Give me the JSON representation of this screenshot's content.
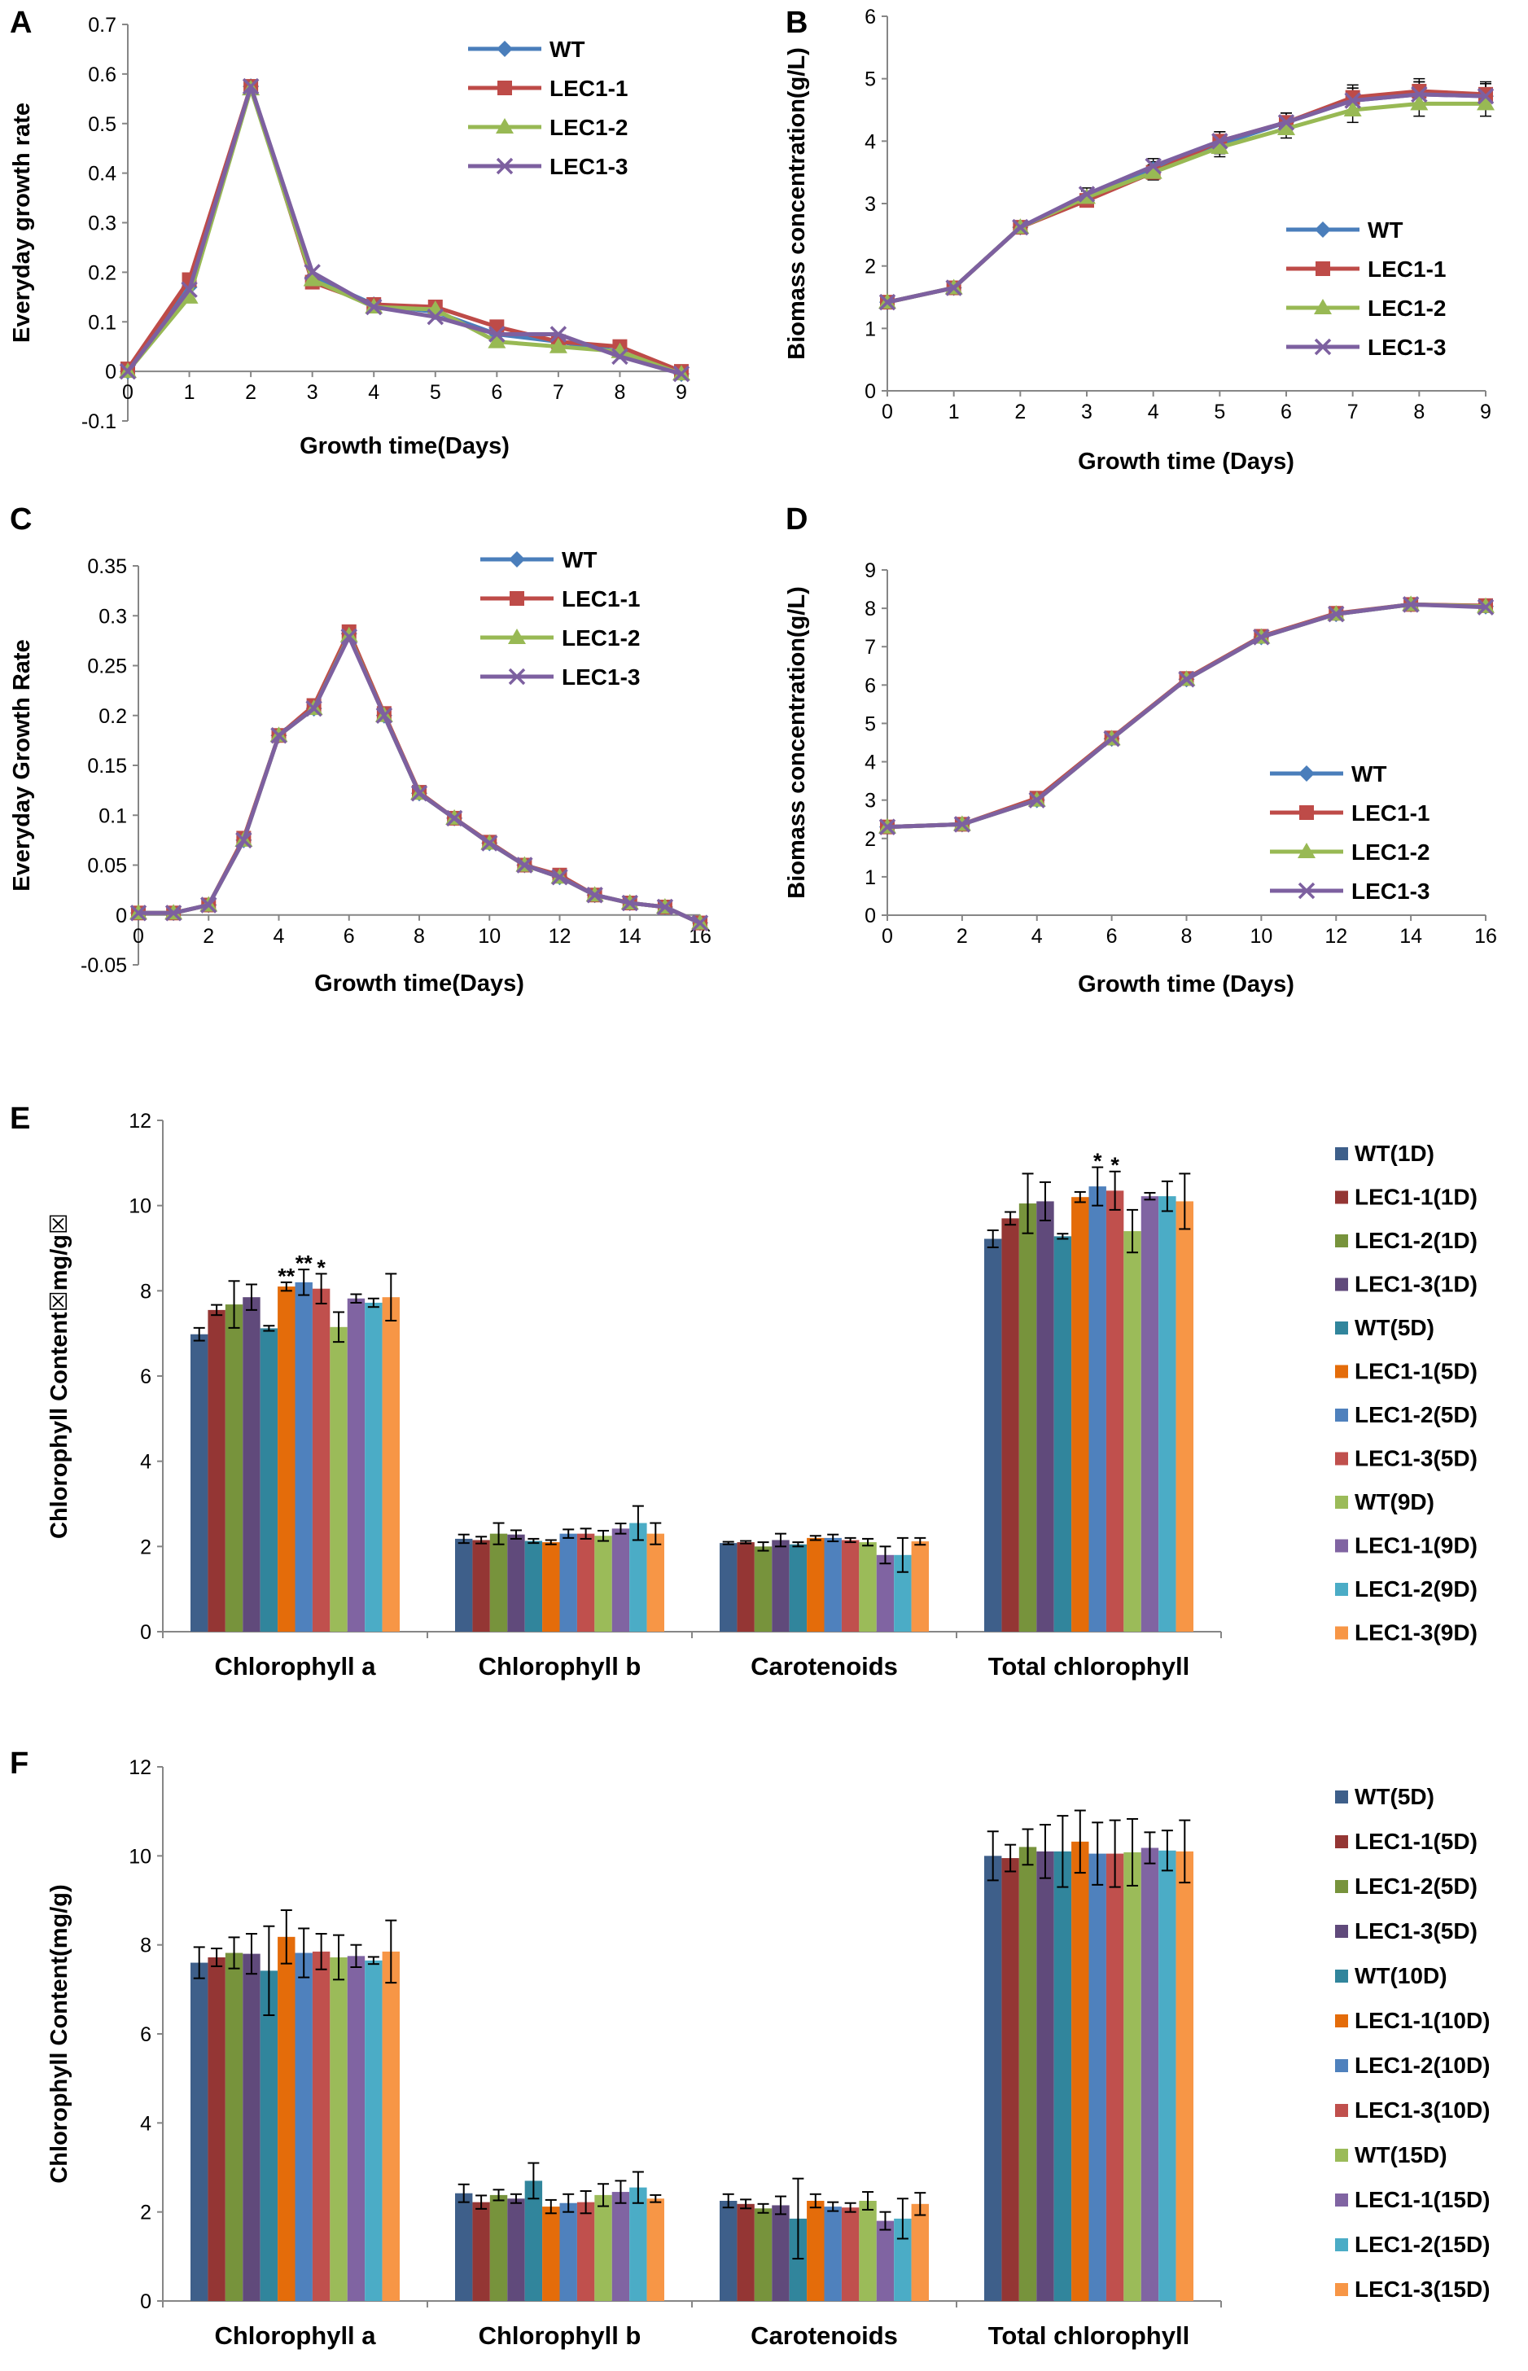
{
  "chart_data": [
    {
      "panel": "A",
      "type": "line",
      "xlabel": "Growth time(Days)",
      "ylabel": "Everyday  growth rate",
      "ylim": [
        -0.1,
        0.7
      ],
      "yticks": [
        -0.1,
        0,
        0.1,
        0.2,
        0.3,
        0.4,
        0.5,
        0.6,
        0.7
      ],
      "xlim": [
        0,
        9
      ],
      "xticks": [
        0,
        1,
        2,
        3,
        4,
        5,
        6,
        7,
        8,
        9
      ],
      "legend": "top-right",
      "x": [
        0,
        1,
        2,
        3,
        4,
        5,
        6,
        7,
        8,
        9
      ],
      "series": [
        {
          "name": "WT",
          "color": "#4a7ebb",
          "marker": "diamond",
          "values": [
            0,
            0.17,
            0.575,
            0.19,
            0.135,
            0.12,
            0.075,
            0.06,
            0.04,
            -0.005
          ]
        },
        {
          "name": "LEC1-1",
          "color": "#be4b48",
          "marker": "square",
          "values": [
            0.005,
            0.185,
            0.575,
            0.18,
            0.135,
            0.13,
            0.09,
            0.06,
            0.05,
            0
          ]
        },
        {
          "name": "LEC1-2",
          "color": "#98b954",
          "marker": "triangle",
          "values": [
            0,
            0.15,
            0.57,
            0.185,
            0.13,
            0.125,
            0.06,
            0.05,
            0.04,
            -0.005
          ]
        },
        {
          "name": "LEC1-3",
          "color": "#7d60a0",
          "marker": "x",
          "values": [
            0,
            0.165,
            0.575,
            0.2,
            0.13,
            0.11,
            0.075,
            0.075,
            0.03,
            -0.005
          ]
        }
      ]
    },
    {
      "panel": "B",
      "type": "line",
      "xlabel": "Growth time (Days)",
      "ylabel": "Biomass concentration(g/L)",
      "ylim": [
        0,
        6
      ],
      "yticks": [
        0,
        1,
        2,
        3,
        4,
        5,
        6
      ],
      "xlim": [
        0,
        9
      ],
      "xticks": [
        0,
        1,
        2,
        3,
        4,
        5,
        6,
        7,
        8,
        9
      ],
      "legend": "bottom-right",
      "x": [
        0,
        1,
        2,
        3,
        4,
        5,
        6,
        7,
        8,
        9
      ],
      "errors": [
        0.05,
        0.05,
        0.05,
        0.1,
        0.12,
        0.15,
        0.15,
        0.2,
        0.2,
        0.2
      ],
      "series": [
        {
          "name": "WT",
          "color": "#4a7ebb",
          "marker": "diamond",
          "values": [
            1.42,
            1.65,
            2.62,
            3.1,
            3.55,
            3.95,
            4.3,
            4.65,
            4.75,
            4.72
          ]
        },
        {
          "name": "LEC1-1",
          "color": "#be4b48",
          "marker": "square",
          "values": [
            1.42,
            1.65,
            2.62,
            3.05,
            3.5,
            4.0,
            4.3,
            4.7,
            4.8,
            4.75
          ]
        },
        {
          "name": "LEC1-2",
          "color": "#98b954",
          "marker": "triangle",
          "values": [
            1.42,
            1.65,
            2.62,
            3.1,
            3.5,
            3.9,
            4.2,
            4.5,
            4.6,
            4.6
          ]
        },
        {
          "name": "LEC1-3",
          "color": "#7d60a0",
          "marker": "x",
          "values": [
            1.42,
            1.65,
            2.62,
            3.15,
            3.6,
            4.0,
            4.3,
            4.65,
            4.75,
            4.72
          ]
        }
      ]
    },
    {
      "panel": "C",
      "type": "line",
      "xlabel": "Growth time(Days)",
      "ylabel": "Everyday  Growth Rate",
      "ylim": [
        -0.05,
        0.35
      ],
      "yticks": [
        -0.05,
        0,
        0.05,
        0.1,
        0.15,
        0.2,
        0.25,
        0.3,
        0.35
      ],
      "ytick_labels": [
        "-0.05",
        "0",
        "0.05",
        "0.1",
        "0.15",
        "0.2",
        "0.25",
        "0.3",
        "0.35"
      ],
      "xlim": [
        0,
        16
      ],
      "xticks": [
        0,
        2,
        4,
        6,
        8,
        10,
        12,
        14,
        16
      ],
      "legend": "top-right",
      "x": [
        0,
        1,
        2,
        3,
        4,
        5,
        6,
        7,
        8,
        9,
        10,
        11,
        12,
        13,
        14,
        15,
        16
      ],
      "series": [
        {
          "name": "WT",
          "color": "#4a7ebb",
          "marker": "diamond",
          "values": [
            0.002,
            0.002,
            0.01,
            0.075,
            0.18,
            0.207,
            0.282,
            0.2,
            0.122,
            0.097,
            0.072,
            0.05,
            0.038,
            0.02,
            0.012,
            0.008,
            -0.008
          ]
        },
        {
          "name": "LEC1-1",
          "color": "#be4b48",
          "marker": "square",
          "values": [
            0.002,
            0.002,
            0.01,
            0.077,
            0.18,
            0.21,
            0.284,
            0.202,
            0.123,
            0.097,
            0.073,
            0.05,
            0.04,
            0.02,
            0.012,
            0.008,
            -0.008
          ]
        },
        {
          "name": "LEC1-2",
          "color": "#98b954",
          "marker": "triangle",
          "values": [
            0.002,
            0.002,
            0.01,
            0.075,
            0.18,
            0.207,
            0.28,
            0.2,
            0.122,
            0.097,
            0.072,
            0.05,
            0.038,
            0.02,
            0.012,
            0.008,
            -0.008
          ]
        },
        {
          "name": "LEC1-3",
          "color": "#7d60a0",
          "marker": "x",
          "values": [
            0.002,
            0.002,
            0.01,
            0.075,
            0.18,
            0.207,
            0.279,
            0.2,
            0.122,
            0.097,
            0.072,
            0.05,
            0.038,
            0.02,
            0.012,
            0.008,
            -0.008
          ]
        }
      ]
    },
    {
      "panel": "D",
      "type": "line",
      "xlabel": "Growth time (Days)",
      "ylabel": "Biomass concentration(g/L)",
      "ylim": [
        0,
        9
      ],
      "yticks": [
        0,
        1,
        2,
        3,
        4,
        5,
        6,
        7,
        8,
        9
      ],
      "xlim": [
        0,
        16
      ],
      "xticks": [
        0,
        2,
        4,
        6,
        8,
        10,
        12,
        14,
        16
      ],
      "legend": "bottom-right",
      "x": [
        0,
        2,
        4,
        6,
        8,
        10,
        12,
        14,
        16
      ],
      "series": [
        {
          "name": "WT",
          "color": "#4a7ebb",
          "marker": "diamond",
          "values": [
            2.3,
            2.37,
            3.0,
            4.6,
            6.15,
            7.25,
            7.85,
            8.1,
            8.05
          ]
        },
        {
          "name": "LEC1-1",
          "color": "#be4b48",
          "marker": "square",
          "values": [
            2.3,
            2.37,
            3.05,
            4.62,
            6.17,
            7.27,
            7.87,
            8.1,
            8.07
          ]
        },
        {
          "name": "LEC1-2",
          "color": "#98b954",
          "marker": "triangle",
          "values": [
            2.3,
            2.37,
            3.0,
            4.6,
            6.15,
            7.25,
            7.85,
            8.1,
            8.05
          ]
        },
        {
          "name": "LEC1-3",
          "color": "#7d60a0",
          "marker": "x",
          "values": [
            2.3,
            2.37,
            3.0,
            4.6,
            6.15,
            7.25,
            7.85,
            8.1,
            8.03
          ]
        }
      ]
    },
    {
      "panel": "E",
      "type": "bar",
      "ylabel": "Chlorophyll  Content☒mg/g☒",
      "ylim": [
        0,
        12
      ],
      "yticks": [
        0,
        2,
        4,
        6,
        8,
        10,
        12
      ],
      "legend": "right",
      "categories": [
        "Chlorophyll a",
        "Chlorophyll b",
        "Carotenoids",
        "Total chlorophyll"
      ],
      "series": [
        {
          "name": "WT(1D)",
          "color": "#3e5f8a",
          "values": [
            6.98,
            2.18,
            2.08,
            9.22
          ],
          "errors": [
            0.15,
            0.1,
            0.03,
            0.2
          ]
        },
        {
          "name": "LEC1-1(1D)",
          "color": "#943634",
          "values": [
            7.55,
            2.15,
            2.1,
            9.7
          ],
          "errors": [
            0.12,
            0.08,
            0.03,
            0.15
          ]
        },
        {
          "name": "LEC1-2(1D)",
          "color": "#77933c",
          "values": [
            7.68,
            2.3,
            2.0,
            10.05
          ],
          "errors": [
            0.55,
            0.25,
            0.1,
            0.7
          ]
        },
        {
          "name": "LEC1-3(1D)",
          "color": "#604a7b",
          "values": [
            7.85,
            2.28,
            2.15,
            10.1
          ],
          "errors": [
            0.3,
            0.1,
            0.15,
            0.45
          ]
        },
        {
          "name": "WT(5D)",
          "color": "#31859c",
          "values": [
            7.12,
            2.13,
            2.05,
            9.28
          ],
          "errors": [
            0.06,
            0.05,
            0.05,
            0.06
          ]
        },
        {
          "name": "LEC1-1(5D)",
          "color": "#e46c0a",
          "values": [
            8.1,
            2.1,
            2.2,
            10.2
          ],
          "errors": [
            0.1,
            0.05,
            0.05,
            0.12
          ]
        },
        {
          "name": "LEC1-2(5D)",
          "color": "#4f81bd",
          "values": [
            8.2,
            2.3,
            2.2,
            10.45
          ],
          "errors": [
            0.3,
            0.1,
            0.08,
            0.45
          ]
        },
        {
          "name": "LEC1-3(5D)",
          "color": "#c0504d",
          "values": [
            8.05,
            2.3,
            2.15,
            10.35
          ],
          "errors": [
            0.35,
            0.12,
            0.05,
            0.45
          ]
        },
        {
          "name": "WT(9D)",
          "color": "#9bbb59",
          "values": [
            7.15,
            2.25,
            2.1,
            9.4
          ],
          "errors": [
            0.35,
            0.12,
            0.08,
            0.5
          ]
        },
        {
          "name": "LEC1-1(9D)",
          "color": "#8064a2",
          "values": [
            7.82,
            2.42,
            1.8,
            10.22
          ],
          "errors": [
            0.1,
            0.12,
            0.2,
            0.08
          ]
        },
        {
          "name": "LEC1-2(9D)",
          "color": "#4bacc6",
          "values": [
            7.72,
            2.55,
            1.8,
            10.22
          ],
          "errors": [
            0.1,
            0.4,
            0.4,
            0.35
          ]
        },
        {
          "name": "LEC1-3(9D)",
          "color": "#f79646",
          "values": [
            7.85,
            2.3,
            2.12,
            10.1
          ],
          "errors": [
            0.55,
            0.25,
            0.08,
            0.65
          ]
        }
      ],
      "annotations": [
        {
          "text": "**",
          "category": 0,
          "bar": 5,
          "y": 8.25
        },
        {
          "text": "**",
          "category": 0,
          "bar": 6,
          "y": 8.55
        },
        {
          "text": "*",
          "category": 0,
          "bar": 7,
          "y": 8.45
        },
        {
          "text": "*",
          "category": 3,
          "bar": 6,
          "y": 10.95
        },
        {
          "text": "*",
          "category": 3,
          "bar": 7,
          "y": 10.85
        }
      ]
    },
    {
      "panel": "F",
      "type": "bar",
      "ylabel": "Chlorophyll  Content(mg/g)",
      "ylim": [
        0,
        12
      ],
      "yticks": [
        0,
        2,
        4,
        6,
        8,
        10,
        12
      ],
      "legend": "right",
      "categories": [
        "Chlorophyll a",
        "Chlorophyll b",
        "Carotenoids",
        "Total chlorophyll"
      ],
      "series": [
        {
          "name": "WT(5D)",
          "color": "#3e5f8a",
          "values": [
            7.6,
            2.42,
            2.25,
            10.0
          ],
          "errors": [
            0.35,
            0.2,
            0.15,
            0.55
          ]
        },
        {
          "name": "LEC1-1(5D)",
          "color": "#943634",
          "values": [
            7.72,
            2.22,
            2.18,
            9.95
          ],
          "errors": [
            0.2,
            0.15,
            0.1,
            0.3
          ]
        },
        {
          "name": "LEC1-2(5D)",
          "color": "#77933c",
          "values": [
            7.82,
            2.38,
            2.08,
            10.2
          ],
          "errors": [
            0.35,
            0.12,
            0.1,
            0.4
          ]
        },
        {
          "name": "LEC1-3(5D)",
          "color": "#604a7b",
          "values": [
            7.8,
            2.3,
            2.15,
            10.1
          ],
          "errors": [
            0.45,
            0.1,
            0.2,
            0.6
          ]
        },
        {
          "name": "WT(10D)",
          "color": "#31859c",
          "values": [
            7.42,
            2.7,
            1.85,
            10.1
          ],
          "errors": [
            1.0,
            0.4,
            0.9,
            0.8
          ]
        },
        {
          "name": "LEC1-1(10D)",
          "color": "#e46c0a",
          "values": [
            8.18,
            2.12,
            2.25,
            10.32
          ],
          "errors": [
            0.6,
            0.15,
            0.15,
            0.7
          ]
        },
        {
          "name": "LEC1-2(10D)",
          "color": "#4f81bd",
          "values": [
            7.82,
            2.2,
            2.12,
            10.05
          ],
          "errors": [
            0.55,
            0.2,
            0.1,
            0.7
          ]
        },
        {
          "name": "LEC1-3(10D)",
          "color": "#c0504d",
          "values": [
            7.85,
            2.22,
            2.1,
            10.05
          ],
          "errors": [
            0.4,
            0.25,
            0.1,
            0.75
          ]
        },
        {
          "name": "WT(15D)",
          "color": "#9bbb59",
          "values": [
            7.72,
            2.38,
            2.25,
            10.08
          ],
          "errors": [
            0.5,
            0.25,
            0.2,
            0.75
          ]
        },
        {
          "name": "LEC1-1(15D)",
          "color": "#8064a2",
          "values": [
            7.75,
            2.45,
            1.8,
            10.18
          ],
          "errors": [
            0.25,
            0.25,
            0.2,
            0.35
          ]
        },
        {
          "name": "LEC1-2(15D)",
          "color": "#4bacc6",
          "values": [
            7.65,
            2.55,
            1.85,
            10.12
          ],
          "errors": [
            0.08,
            0.35,
            0.45,
            0.45
          ]
        },
        {
          "name": "LEC1-3(15D)",
          "color": "#f79646",
          "values": [
            7.85,
            2.3,
            2.18,
            10.1
          ],
          "errors": [
            0.7,
            0.08,
            0.25,
            0.7
          ]
        }
      ]
    }
  ]
}
